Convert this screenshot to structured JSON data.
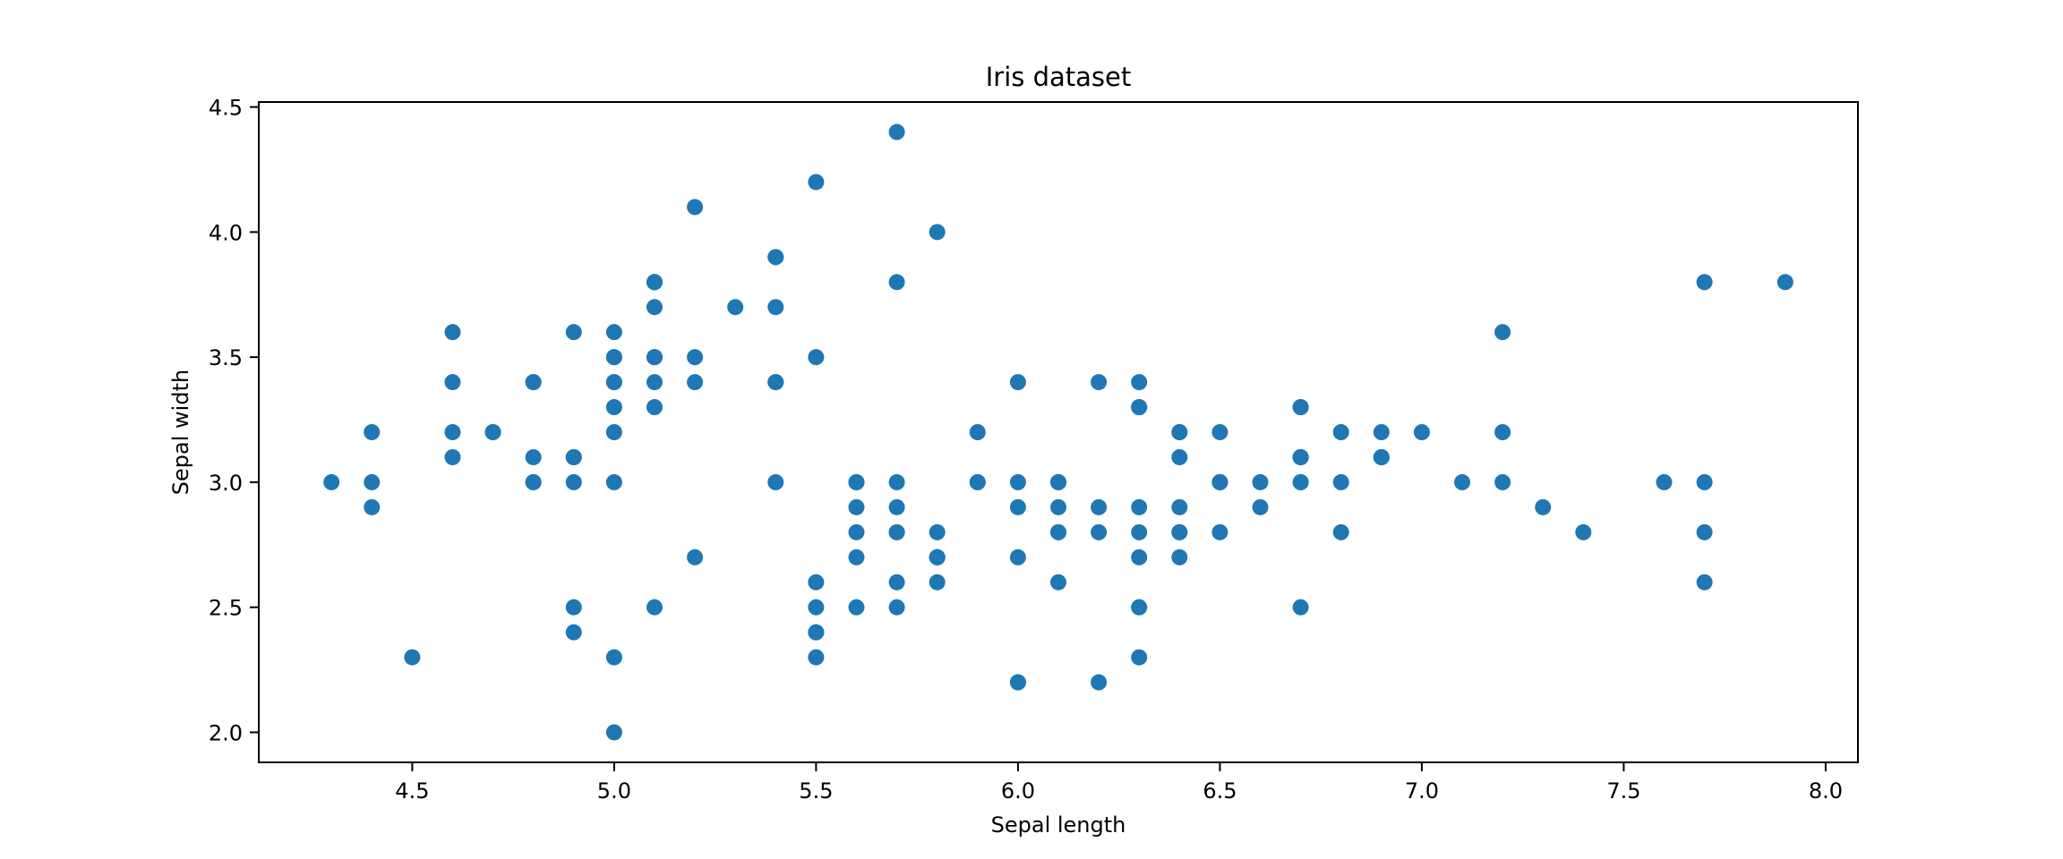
{
  "chart_data": {
    "type": "scatter",
    "title": "Iris dataset",
    "xlabel": "Sepal length",
    "ylabel": "Sepal width",
    "xlim": [
      4.12,
      8.08
    ],
    "ylim": [
      1.88,
      4.52
    ],
    "xticks": [
      "4.5",
      "5.0",
      "5.5",
      "6.0",
      "6.5",
      "7.0",
      "7.5",
      "8.0"
    ],
    "yticks": [
      "2.0",
      "2.5",
      "3.0",
      "3.5",
      "4.0",
      "4.5"
    ],
    "grid": false,
    "marker_color": "#1f77b4",
    "points": [
      [
        5.1,
        3.5
      ],
      [
        4.9,
        3.0
      ],
      [
        4.7,
        3.2
      ],
      [
        4.6,
        3.1
      ],
      [
        5.0,
        3.6
      ],
      [
        5.4,
        3.9
      ],
      [
        4.6,
        3.4
      ],
      [
        5.0,
        3.4
      ],
      [
        4.4,
        2.9
      ],
      [
        4.9,
        3.1
      ],
      [
        5.4,
        3.7
      ],
      [
        4.8,
        3.4
      ],
      [
        4.8,
        3.0
      ],
      [
        4.3,
        3.0
      ],
      [
        5.8,
        4.0
      ],
      [
        5.7,
        4.4
      ],
      [
        5.4,
        3.9
      ],
      [
        5.1,
        3.5
      ],
      [
        5.7,
        3.8
      ],
      [
        5.1,
        3.8
      ],
      [
        5.4,
        3.4
      ],
      [
        5.1,
        3.7
      ],
      [
        4.6,
        3.6
      ],
      [
        5.1,
        3.3
      ],
      [
        4.8,
        3.4
      ],
      [
        5.0,
        3.0
      ],
      [
        5.0,
        3.4
      ],
      [
        5.2,
        3.5
      ],
      [
        5.2,
        3.4
      ],
      [
        4.7,
        3.2
      ],
      [
        4.8,
        3.1
      ],
      [
        5.4,
        3.4
      ],
      [
        5.2,
        4.1
      ],
      [
        5.5,
        4.2
      ],
      [
        4.9,
        3.1
      ],
      [
        5.0,
        3.2
      ],
      [
        5.5,
        3.5
      ],
      [
        4.9,
        3.6
      ],
      [
        4.4,
        3.0
      ],
      [
        5.1,
        3.4
      ],
      [
        5.0,
        3.5
      ],
      [
        4.5,
        2.3
      ],
      [
        4.4,
        3.2
      ],
      [
        5.0,
        3.5
      ],
      [
        5.1,
        3.8
      ],
      [
        4.8,
        3.0
      ],
      [
        5.1,
        3.8
      ],
      [
        4.6,
        3.2
      ],
      [
        5.3,
        3.7
      ],
      [
        5.0,
        3.3
      ],
      [
        7.0,
        3.2
      ],
      [
        6.4,
        3.2
      ],
      [
        6.9,
        3.1
      ],
      [
        5.5,
        2.3
      ],
      [
        6.5,
        2.8
      ],
      [
        5.7,
        2.8
      ],
      [
        6.3,
        3.3
      ],
      [
        4.9,
        2.4
      ],
      [
        6.6,
        2.9
      ],
      [
        5.2,
        2.7
      ],
      [
        5.0,
        2.0
      ],
      [
        5.9,
        3.0
      ],
      [
        6.0,
        2.2
      ],
      [
        6.1,
        2.9
      ],
      [
        5.6,
        2.9
      ],
      [
        6.7,
        3.1
      ],
      [
        5.6,
        3.0
      ],
      [
        5.8,
        2.7
      ],
      [
        6.2,
        2.2
      ],
      [
        5.6,
        2.5
      ],
      [
        5.9,
        3.2
      ],
      [
        6.1,
        2.8
      ],
      [
        6.3,
        2.5
      ],
      [
        6.1,
        2.8
      ],
      [
        6.4,
        2.9
      ],
      [
        6.6,
        3.0
      ],
      [
        6.8,
        2.8
      ],
      [
        6.7,
        3.0
      ],
      [
        6.0,
        2.9
      ],
      [
        5.7,
        2.6
      ],
      [
        5.5,
        2.4
      ],
      [
        5.5,
        2.4
      ],
      [
        5.8,
        2.7
      ],
      [
        6.0,
        2.7
      ],
      [
        5.4,
        3.0
      ],
      [
        6.0,
        3.4
      ],
      [
        6.7,
        3.1
      ],
      [
        6.3,
        2.3
      ],
      [
        5.6,
        3.0
      ],
      [
        5.5,
        2.5
      ],
      [
        5.5,
        2.6
      ],
      [
        6.1,
        3.0
      ],
      [
        5.8,
        2.6
      ],
      [
        5.0,
        2.3
      ],
      [
        5.6,
        2.7
      ],
      [
        5.7,
        3.0
      ],
      [
        5.7,
        2.9
      ],
      [
        6.2,
        2.9
      ],
      [
        5.1,
        2.5
      ],
      [
        5.7,
        2.8
      ],
      [
        6.3,
        3.3
      ],
      [
        5.8,
        2.7
      ],
      [
        7.1,
        3.0
      ],
      [
        6.3,
        2.9
      ],
      [
        6.5,
        3.0
      ],
      [
        7.6,
        3.0
      ],
      [
        4.9,
        2.5
      ],
      [
        7.3,
        2.9
      ],
      [
        6.7,
        2.5
      ],
      [
        7.2,
        3.6
      ],
      [
        6.5,
        3.2
      ],
      [
        6.4,
        2.7
      ],
      [
        6.8,
        3.0
      ],
      [
        5.7,
        2.5
      ],
      [
        5.8,
        2.8
      ],
      [
        6.4,
        3.2
      ],
      [
        6.5,
        3.0
      ],
      [
        7.7,
        3.8
      ],
      [
        7.7,
        2.6
      ],
      [
        6.0,
        2.2
      ],
      [
        6.9,
        3.2
      ],
      [
        5.6,
        2.8
      ],
      [
        7.7,
        2.8
      ],
      [
        6.3,
        2.7
      ],
      [
        6.7,
        3.3
      ],
      [
        7.2,
        3.2
      ],
      [
        6.2,
        2.8
      ],
      [
        6.1,
        3.0
      ],
      [
        6.4,
        2.8
      ],
      [
        7.2,
        3.0
      ],
      [
        7.4,
        2.8
      ],
      [
        7.9,
        3.8
      ],
      [
        6.4,
        2.8
      ],
      [
        6.3,
        2.8
      ],
      [
        6.1,
        2.6
      ],
      [
        7.7,
        3.0
      ],
      [
        6.3,
        3.4
      ],
      [
        6.4,
        3.1
      ],
      [
        6.0,
        3.0
      ],
      [
        6.9,
        3.1
      ],
      [
        6.7,
        3.1
      ],
      [
        6.9,
        3.1
      ],
      [
        5.8,
        2.7
      ],
      [
        6.8,
        3.2
      ],
      [
        6.7,
        3.3
      ],
      [
        6.7,
        3.0
      ],
      [
        6.3,
        2.5
      ],
      [
        6.5,
        3.0
      ],
      [
        6.2,
        3.4
      ],
      [
        5.9,
        3.0
      ]
    ]
  }
}
